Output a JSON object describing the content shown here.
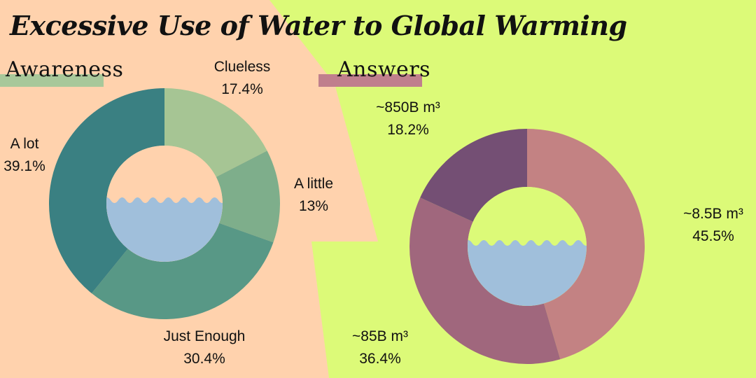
{
  "title": "Excessive Use of Water to Global Warming",
  "colors": {
    "background_left": "#ffd2ad",
    "background_right": "#dcfa78",
    "water": "#a0bfdb",
    "awareness_bar": "#a8c89a",
    "answers_bar": "#c07f8d"
  },
  "chart_data": [
    {
      "type": "pie",
      "variant": "donut",
      "title": "Awareness",
      "categories": [
        "Clueless",
        "A little",
        "Just Enough",
        "A lot"
      ],
      "values": [
        17.4,
        13,
        30.4,
        39.1
      ],
      "value_labels": [
        "17.4%",
        "13%",
        "30.4%",
        "39.1%"
      ],
      "colors": [
        "#a6c594",
        "#7eae8b",
        "#589886",
        "#3a8082"
      ]
    },
    {
      "type": "pie",
      "variant": "donut",
      "title": "Answers",
      "categories": [
        "~8.5B m³",
        "~85B m³",
        "~850B m³"
      ],
      "values": [
        45.5,
        36.4,
        18.2
      ],
      "value_labels": [
        "45.5%",
        "36.4%",
        "18.2%"
      ],
      "colors": [
        "#c38283",
        "#a0677d",
        "#744f74"
      ]
    }
  ]
}
